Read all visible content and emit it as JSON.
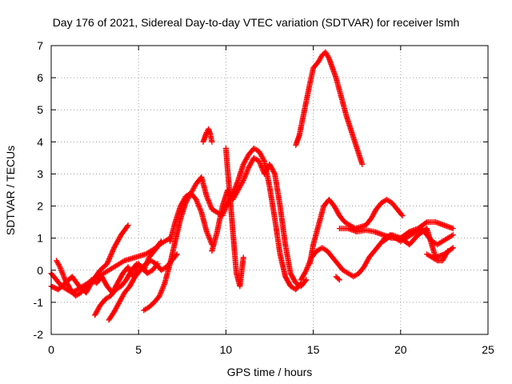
{
  "chart_data": {
    "type": "scatter",
    "title": "Day 176 of 2021, Sidereal Day-to-day VTEC variation (SDTVAR) for receiver lsmh",
    "xlabel": "GPS time / hours",
    "ylabel": "SDTVAR / TECUs",
    "xlim": [
      0,
      25
    ],
    "ylim": [
      -2,
      7
    ],
    "xticks": [
      "0",
      "5",
      "10",
      "15",
      "20",
      "25"
    ],
    "yticks": [
      "-2",
      "-1",
      "0",
      "1",
      "2",
      "3",
      "4",
      "5",
      "6",
      "7"
    ],
    "grid": true,
    "marker": "+",
    "color": "#ff0000",
    "series": [
      {
        "x": [
          0.0,
          0.3,
          0.6,
          0.9,
          1.2,
          1.5,
          1.8,
          2.1,
          2.4,
          2.7,
          3.0,
          3.3,
          3.6,
          3.9,
          4.2,
          4.5,
          4.8,
          5.1,
          5.4,
          5.7,
          6.0,
          6.3
        ],
        "y": [
          -0.1,
          -0.3,
          -0.5,
          -0.6,
          -0.7,
          -0.6,
          -0.5,
          -0.4,
          -0.3,
          -0.2,
          -0.1,
          0.0,
          0.1,
          0.2,
          0.3,
          0.35,
          0.4,
          0.45,
          0.5,
          0.6,
          0.7,
          0.9
        ]
      },
      {
        "x": [
          0.3,
          0.5,
          0.8,
          1.1,
          1.4,
          1.7,
          2.0,
          2.3,
          2.6,
          2.9,
          3.2,
          3.5,
          3.8,
          4.1,
          4.4,
          4.7,
          5.0,
          5.3,
          5.6,
          5.9,
          6.2,
          6.5,
          6.8
        ],
        "y": [
          0.3,
          0.1,
          -0.3,
          -0.6,
          -0.8,
          -0.7,
          -0.5,
          -0.3,
          -0.4,
          -0.2,
          -0.5,
          -0.7,
          -0.4,
          -0.1,
          0.1,
          -0.2,
          0.2,
          0.0,
          0.4,
          0.6,
          0.8,
          0.9,
          1.0
        ]
      },
      {
        "x": [
          0.0,
          0.4,
          0.8,
          1.2,
          1.6,
          2.0,
          2.4,
          2.8,
          3.2,
          3.6,
          4.0,
          4.4
        ],
        "y": [
          -0.5,
          -0.6,
          -0.4,
          -0.2,
          -0.5,
          -0.7,
          -0.3,
          0.0,
          0.2,
          0.7,
          1.1,
          1.4
        ]
      },
      {
        "x": [
          2.5,
          2.8,
          3.1,
          3.4,
          3.7,
          4.0,
          4.3,
          4.6,
          4.9,
          5.2,
          5.5,
          5.8,
          6.1
        ],
        "y": [
          -1.4,
          -1.1,
          -0.9,
          -0.8,
          -0.6,
          -0.5,
          -0.3,
          0.0,
          0.2,
          0.1,
          -0.1,
          0.0,
          0.2
        ]
      },
      {
        "x": [
          3.3,
          3.6,
          3.9,
          4.2,
          4.5,
          4.8,
          5.1,
          5.4,
          5.7,
          6.0,
          6.3,
          6.6,
          6.9,
          7.2
        ],
        "y": [
          -1.55,
          -1.3,
          -1.0,
          -0.7,
          -0.5,
          -0.2,
          0.0,
          0.2,
          0.3,
          0.2,
          0.0,
          0.1,
          0.3,
          0.5
        ]
      },
      {
        "x": [
          5.3,
          5.6,
          5.9,
          6.2,
          6.5,
          6.8,
          7.1,
          7.4,
          7.7,
          8.0,
          8.3,
          8.6,
          8.9,
          9.2
        ],
        "y": [
          -1.25,
          -1.15,
          -1.0,
          -0.8,
          -0.4,
          0.2,
          0.9,
          1.6,
          2.1,
          2.4,
          2.2,
          1.8,
          1.2,
          0.8
        ]
      },
      {
        "x": [
          6.8,
          7.1,
          7.4,
          7.7,
          8.0,
          8.3,
          8.6,
          8.9,
          9.2,
          9.5,
          9.8,
          10.1,
          10.4,
          10.7,
          11.0,
          11.3,
          11.6,
          11.9,
          12.2,
          12.5,
          12.8,
          13.1,
          13.4,
          13.7,
          14.0,
          14.3
        ],
        "y": [
          0.9,
          1.5,
          2.0,
          2.3,
          2.4,
          2.7,
          2.9,
          2.3,
          1.9,
          1.8,
          1.7,
          2.1,
          2.4,
          2.8,
          3.3,
          3.6,
          3.8,
          3.7,
          3.4,
          2.6,
          1.6,
          0.5,
          -0.2,
          -0.5,
          -0.6,
          -0.4
        ]
      },
      {
        "x": [
          9.2,
          9.5,
          9.8,
          10.1,
          10.4,
          10.7,
          11.0,
          11.3,
          11.6,
          11.9,
          12.2,
          12.5,
          12.8,
          13.1,
          13.4,
          13.7,
          14.0,
          14.3,
          14.6
        ],
        "y": [
          0.6,
          1.2,
          2.0,
          2.5,
          2.2,
          2.5,
          2.8,
          3.2,
          3.5,
          3.4,
          3.0,
          3.3,
          3.0,
          2.0,
          0.8,
          -0.1,
          -0.4,
          -0.5,
          -0.3
        ]
      },
      {
        "x": [
          8.7,
          8.8,
          8.9,
          9.0,
          9.1,
          9.2
        ],
        "y": [
          4.0,
          4.15,
          4.3,
          4.4,
          4.25,
          4.0
        ]
      },
      {
        "x": [
          10.0,
          10.1,
          10.25,
          10.4,
          10.6,
          10.8,
          11.0
        ],
        "y": [
          3.8,
          3.1,
          2.2,
          1.2,
          -0.1,
          -0.5,
          0.4
        ]
      },
      {
        "x": [
          14.0,
          14.2,
          14.5,
          14.8,
          15.0,
          15.3,
          15.5,
          15.7,
          15.9,
          16.1,
          16.3,
          16.6,
          16.9,
          17.2,
          17.5,
          17.8
        ],
        "y": [
          3.9,
          4.2,
          5.0,
          5.8,
          6.3,
          6.5,
          6.7,
          6.8,
          6.6,
          6.3,
          6.0,
          5.4,
          4.8,
          4.3,
          3.8,
          3.3
        ]
      },
      {
        "x": [
          14.8,
          15.0,
          15.3,
          15.6,
          15.9,
          16.2,
          16.5,
          16.8,
          17.1,
          17.4,
          17.7,
          18.0,
          18.3,
          18.6,
          18.9,
          19.2,
          19.5,
          19.8,
          20.1
        ],
        "y": [
          0.2,
          0.8,
          1.4,
          2.0,
          2.2,
          2.0,
          1.7,
          1.5,
          1.4,
          1.3,
          1.35,
          1.4,
          1.6,
          1.9,
          2.1,
          2.2,
          2.1,
          1.9,
          1.7
        ]
      },
      {
        "x": [
          14.3,
          14.6,
          14.9,
          15.2,
          15.5,
          15.8,
          16.1,
          16.4,
          16.7,
          17.0,
          17.3,
          17.6,
          17.9,
          18.2,
          18.5,
          18.8,
          19.1,
          19.4,
          19.7,
          20.0,
          20.3,
          20.6,
          20.9,
          21.2,
          21.5,
          21.8,
          22.1,
          22.4,
          22.7,
          23.0
        ],
        "y": [
          -0.3,
          0.0,
          0.4,
          0.6,
          0.7,
          0.6,
          0.4,
          0.2,
          0.0,
          -0.1,
          -0.2,
          -0.1,
          0.1,
          0.4,
          0.6,
          0.8,
          1.0,
          1.1,
          1.0,
          0.9,
          1.0,
          1.1,
          1.2,
          1.3,
          1.1,
          0.9,
          0.8,
          0.9,
          1.0,
          1.1
        ]
      },
      {
        "x": [
          16.5,
          17.0,
          17.5,
          18.0,
          18.5,
          19.0,
          19.5,
          20.0,
          20.5,
          21.0,
          21.5,
          22.0,
          22.5,
          23.0
        ],
        "y": [
          1.3,
          1.3,
          1.2,
          1.25,
          1.2,
          1.1,
          1.0,
          1.0,
          1.2,
          1.3,
          1.5,
          1.5,
          1.4,
          1.3
        ]
      },
      {
        "x": [
          19.0,
          19.5,
          20.0,
          20.5,
          21.0,
          21.5,
          22.0,
          22.5,
          23.0
        ],
        "y": [
          0.9,
          1.1,
          1.0,
          0.8,
          1.1,
          1.3,
          0.4,
          0.5,
          0.7
        ]
      },
      {
        "x": [
          21.5,
          21.8,
          22.1,
          22.4,
          22.7
        ],
        "y": [
          0.5,
          0.4,
          0.3,
          0.3,
          0.6
        ]
      },
      {
        "x": [
          16.3,
          16.5
        ],
        "y": [
          -0.2,
          -0.3
        ]
      }
    ]
  }
}
